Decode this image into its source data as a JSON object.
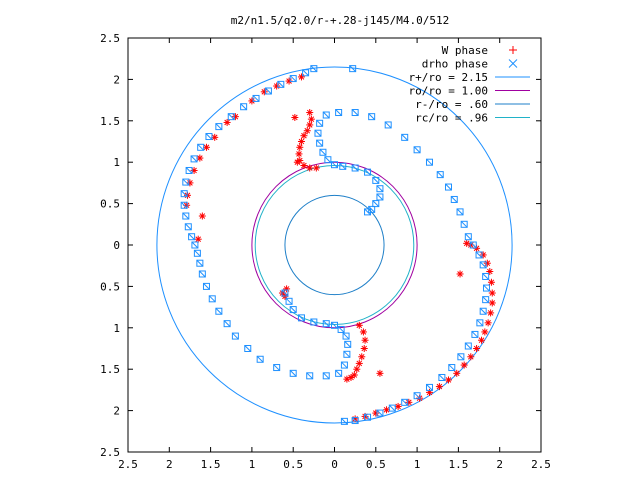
{
  "chart_data": {
    "type": "scatter",
    "title": "m2/n1.5/q2.0/r-+.28-j145/M4.0/512",
    "xlabel": "",
    "ylabel": "",
    "xlim": [
      -2.5,
      2.5
    ],
    "ylim": [
      -2.5,
      2.5
    ],
    "x_ticks": [
      -2.5,
      -2,
      -1.5,
      -1,
      -0.5,
      0,
      0.5,
      1,
      1.5,
      2,
      2.5
    ],
    "x_tick_labels": [
      "2.5",
      "2",
      "1.5",
      "1",
      "0.5",
      "0",
      "0.5",
      "1",
      "1.5",
      "2",
      "2.5"
    ],
    "y_ticks": [
      2.5,
      2,
      1.5,
      1,
      0.5,
      0,
      -0.5,
      -1,
      -1.5,
      -2,
      -2.5
    ],
    "y_tick_labels": [
      "2.5",
      "2",
      "1.5",
      "1",
      "0.5",
      "0",
      "0.5",
      "1",
      "1.5",
      "2",
      "2.5"
    ],
    "grid": false,
    "legend_position": "top-right",
    "series": [
      {
        "name": "W phase",
        "marker": "plus-star",
        "color": "#ff0000",
        "points": [
          [
            -0.3,
            1.6
          ],
          [
            -0.28,
            1.52
          ],
          [
            -0.3,
            1.45
          ],
          [
            -0.33,
            1.38
          ],
          [
            -0.37,
            1.32
          ],
          [
            -0.4,
            1.25
          ],
          [
            -0.42,
            1.18
          ],
          [
            -0.43,
            1.1
          ],
          [
            -0.42,
            1.02
          ],
          [
            -0.37,
            0.96
          ],
          [
            -0.3,
            0.93
          ],
          [
            -0.22,
            0.93
          ],
          [
            -0.48,
            1.54
          ],
          [
            -0.45,
            1.0
          ],
          [
            1.6,
            0.02
          ],
          [
            1.65,
            0.0
          ],
          [
            1.72,
            -0.04
          ],
          [
            1.8,
            -0.12
          ],
          [
            1.85,
            -0.22
          ],
          [
            1.88,
            -0.32
          ],
          [
            1.9,
            -0.45
          ],
          [
            1.91,
            -0.58
          ],
          [
            1.91,
            -0.7
          ],
          [
            1.89,
            -0.82
          ],
          [
            1.86,
            -0.94
          ],
          [
            1.82,
            -1.05
          ],
          [
            1.78,
            -1.15
          ],
          [
            1.72,
            -1.25
          ],
          [
            1.65,
            -1.35
          ],
          [
            1.57,
            -1.45
          ],
          [
            1.48,
            -1.55
          ],
          [
            1.38,
            -1.63
          ],
          [
            1.27,
            -1.71
          ],
          [
            1.15,
            -1.78
          ],
          [
            1.03,
            -1.85
          ],
          [
            0.9,
            -1.9
          ],
          [
            0.77,
            -1.95
          ],
          [
            0.63,
            -1.99
          ],
          [
            0.5,
            -2.03
          ],
          [
            0.37,
            -2.07
          ],
          [
            0.25,
            -2.1
          ],
          [
            1.52,
            -0.35
          ],
          [
            0.3,
            -0.97
          ],
          [
            0.35,
            -1.05
          ],
          [
            0.37,
            -1.15
          ],
          [
            0.36,
            -1.25
          ],
          [
            0.33,
            -1.35
          ],
          [
            0.3,
            -1.43
          ],
          [
            0.27,
            -1.5
          ],
          [
            0.24,
            -1.57
          ],
          [
            0.2,
            -1.6
          ],
          [
            0.15,
            -1.62
          ],
          [
            0.55,
            -1.55
          ],
          [
            -1.65,
            0.07
          ],
          [
            -1.6,
            0.35
          ],
          [
            -0.58,
            -0.53
          ],
          [
            -0.63,
            -0.58
          ],
          [
            -0.6,
            -0.62
          ],
          [
            -1.2,
            1.55
          ],
          [
            -1.3,
            1.48
          ],
          [
            -1.45,
            1.3
          ],
          [
            -1.55,
            1.18
          ],
          [
            -1.63,
            1.05
          ],
          [
            -1.7,
            0.9
          ],
          [
            -1.75,
            0.75
          ],
          [
            -1.78,
            0.6
          ],
          [
            -1.79,
            0.48
          ],
          [
            -0.4,
            2.03
          ],
          [
            -0.55,
            1.98
          ],
          [
            -0.7,
            1.92
          ],
          [
            -0.85,
            1.85
          ],
          [
            -1.0,
            1.74
          ]
        ]
      },
      {
        "name": "drho phase",
        "marker": "x-square",
        "color": "#1e90ff",
        "points": [
          [
            -0.25,
            2.13
          ],
          [
            -0.35,
            2.08
          ],
          [
            -0.5,
            2.01
          ],
          [
            -0.65,
            1.94
          ],
          [
            -0.8,
            1.86
          ],
          [
            -0.95,
            1.77
          ],
          [
            -1.1,
            1.67
          ],
          [
            -1.25,
            1.55
          ],
          [
            -1.4,
            1.43
          ],
          [
            -1.52,
            1.31
          ],
          [
            -1.62,
            1.18
          ],
          [
            -1.7,
            1.04
          ],
          [
            -1.76,
            0.9
          ],
          [
            -1.8,
            0.76
          ],
          [
            -1.82,
            0.62
          ],
          [
            -1.82,
            0.48
          ],
          [
            -1.8,
            0.35
          ],
          [
            -1.77,
            0.22
          ],
          [
            -1.73,
            0.1
          ],
          [
            -1.69,
            0.0
          ],
          [
            -1.66,
            -0.1
          ],
          [
            -1.63,
            -0.22
          ],
          [
            -1.6,
            -0.35
          ],
          [
            -1.55,
            -0.5
          ],
          [
            -1.48,
            -0.65
          ],
          [
            -1.4,
            -0.8
          ],
          [
            -1.3,
            -0.95
          ],
          [
            -1.2,
            -1.1
          ],
          [
            -1.05,
            -1.25
          ],
          [
            -0.9,
            -1.38
          ],
          [
            -0.7,
            -1.48
          ],
          [
            -0.5,
            -1.55
          ],
          [
            -0.3,
            -1.58
          ],
          [
            -0.1,
            -1.58
          ],
          [
            0.05,
            -1.55
          ],
          [
            0.12,
            -1.45
          ],
          [
            0.15,
            -1.32
          ],
          [
            0.16,
            -1.2
          ],
          [
            0.14,
            -1.1
          ],
          [
            0.08,
            -1.02
          ],
          [
            0.0,
            -0.97
          ],
          [
            -0.1,
            -0.95
          ],
          [
            -0.25,
            -0.93
          ],
          [
            -0.4,
            -0.88
          ],
          [
            -0.5,
            -0.78
          ],
          [
            -0.55,
            -0.68
          ],
          [
            -0.6,
            -0.58
          ],
          [
            0.22,
            2.13
          ],
          [
            0.12,
            -2.13
          ],
          [
            0.25,
            -2.12
          ],
          [
            0.4,
            -2.08
          ],
          [
            0.55,
            -2.03
          ],
          [
            0.7,
            -1.97
          ],
          [
            0.85,
            -1.9
          ],
          [
            1.0,
            -1.82
          ],
          [
            1.15,
            -1.72
          ],
          [
            1.3,
            -1.6
          ],
          [
            1.42,
            -1.48
          ],
          [
            1.53,
            -1.35
          ],
          [
            1.62,
            -1.22
          ],
          [
            1.7,
            -1.08
          ],
          [
            1.76,
            -0.94
          ],
          [
            1.8,
            -0.8
          ],
          [
            1.83,
            -0.66
          ],
          [
            1.84,
            -0.52
          ],
          [
            1.83,
            -0.38
          ],
          [
            1.8,
            -0.24
          ],
          [
            1.75,
            -0.12
          ],
          [
            1.68,
            0.0
          ],
          [
            1.62,
            0.1
          ],
          [
            1.57,
            0.25
          ],
          [
            1.52,
            0.4
          ],
          [
            1.45,
            0.55
          ],
          [
            1.38,
            0.7
          ],
          [
            1.28,
            0.85
          ],
          [
            1.15,
            1.0
          ],
          [
            1.0,
            1.15
          ],
          [
            0.85,
            1.3
          ],
          [
            0.65,
            1.45
          ],
          [
            0.45,
            1.55
          ],
          [
            0.25,
            1.6
          ],
          [
            0.05,
            1.6
          ],
          [
            -0.1,
            1.57
          ],
          [
            -0.18,
            1.47
          ],
          [
            -0.2,
            1.35
          ],
          [
            -0.18,
            1.23
          ],
          [
            -0.14,
            1.12
          ],
          [
            -0.08,
            1.03
          ],
          [
            0.0,
            0.97
          ],
          [
            0.1,
            0.95
          ],
          [
            0.25,
            0.93
          ],
          [
            0.4,
            0.88
          ],
          [
            0.5,
            0.78
          ],
          [
            0.55,
            0.68
          ],
          [
            0.55,
            0.58
          ],
          [
            0.5,
            0.5
          ],
          [
            0.45,
            0.43
          ],
          [
            0.4,
            0.4
          ]
        ]
      }
    ],
    "circles": [
      {
        "name": "r+/ro = 2.15",
        "r": 2.15,
        "color": "#1e90ff"
      },
      {
        "name": "ro/ro = 1.00",
        "r": 1.0,
        "color": "#a000a0"
      },
      {
        "name": "r-/ro = .60",
        "r": 0.6,
        "color": "#1e7fc8"
      },
      {
        "name": "rc/ro = .96",
        "r": 0.96,
        "color": "#20b2c8"
      }
    ]
  }
}
